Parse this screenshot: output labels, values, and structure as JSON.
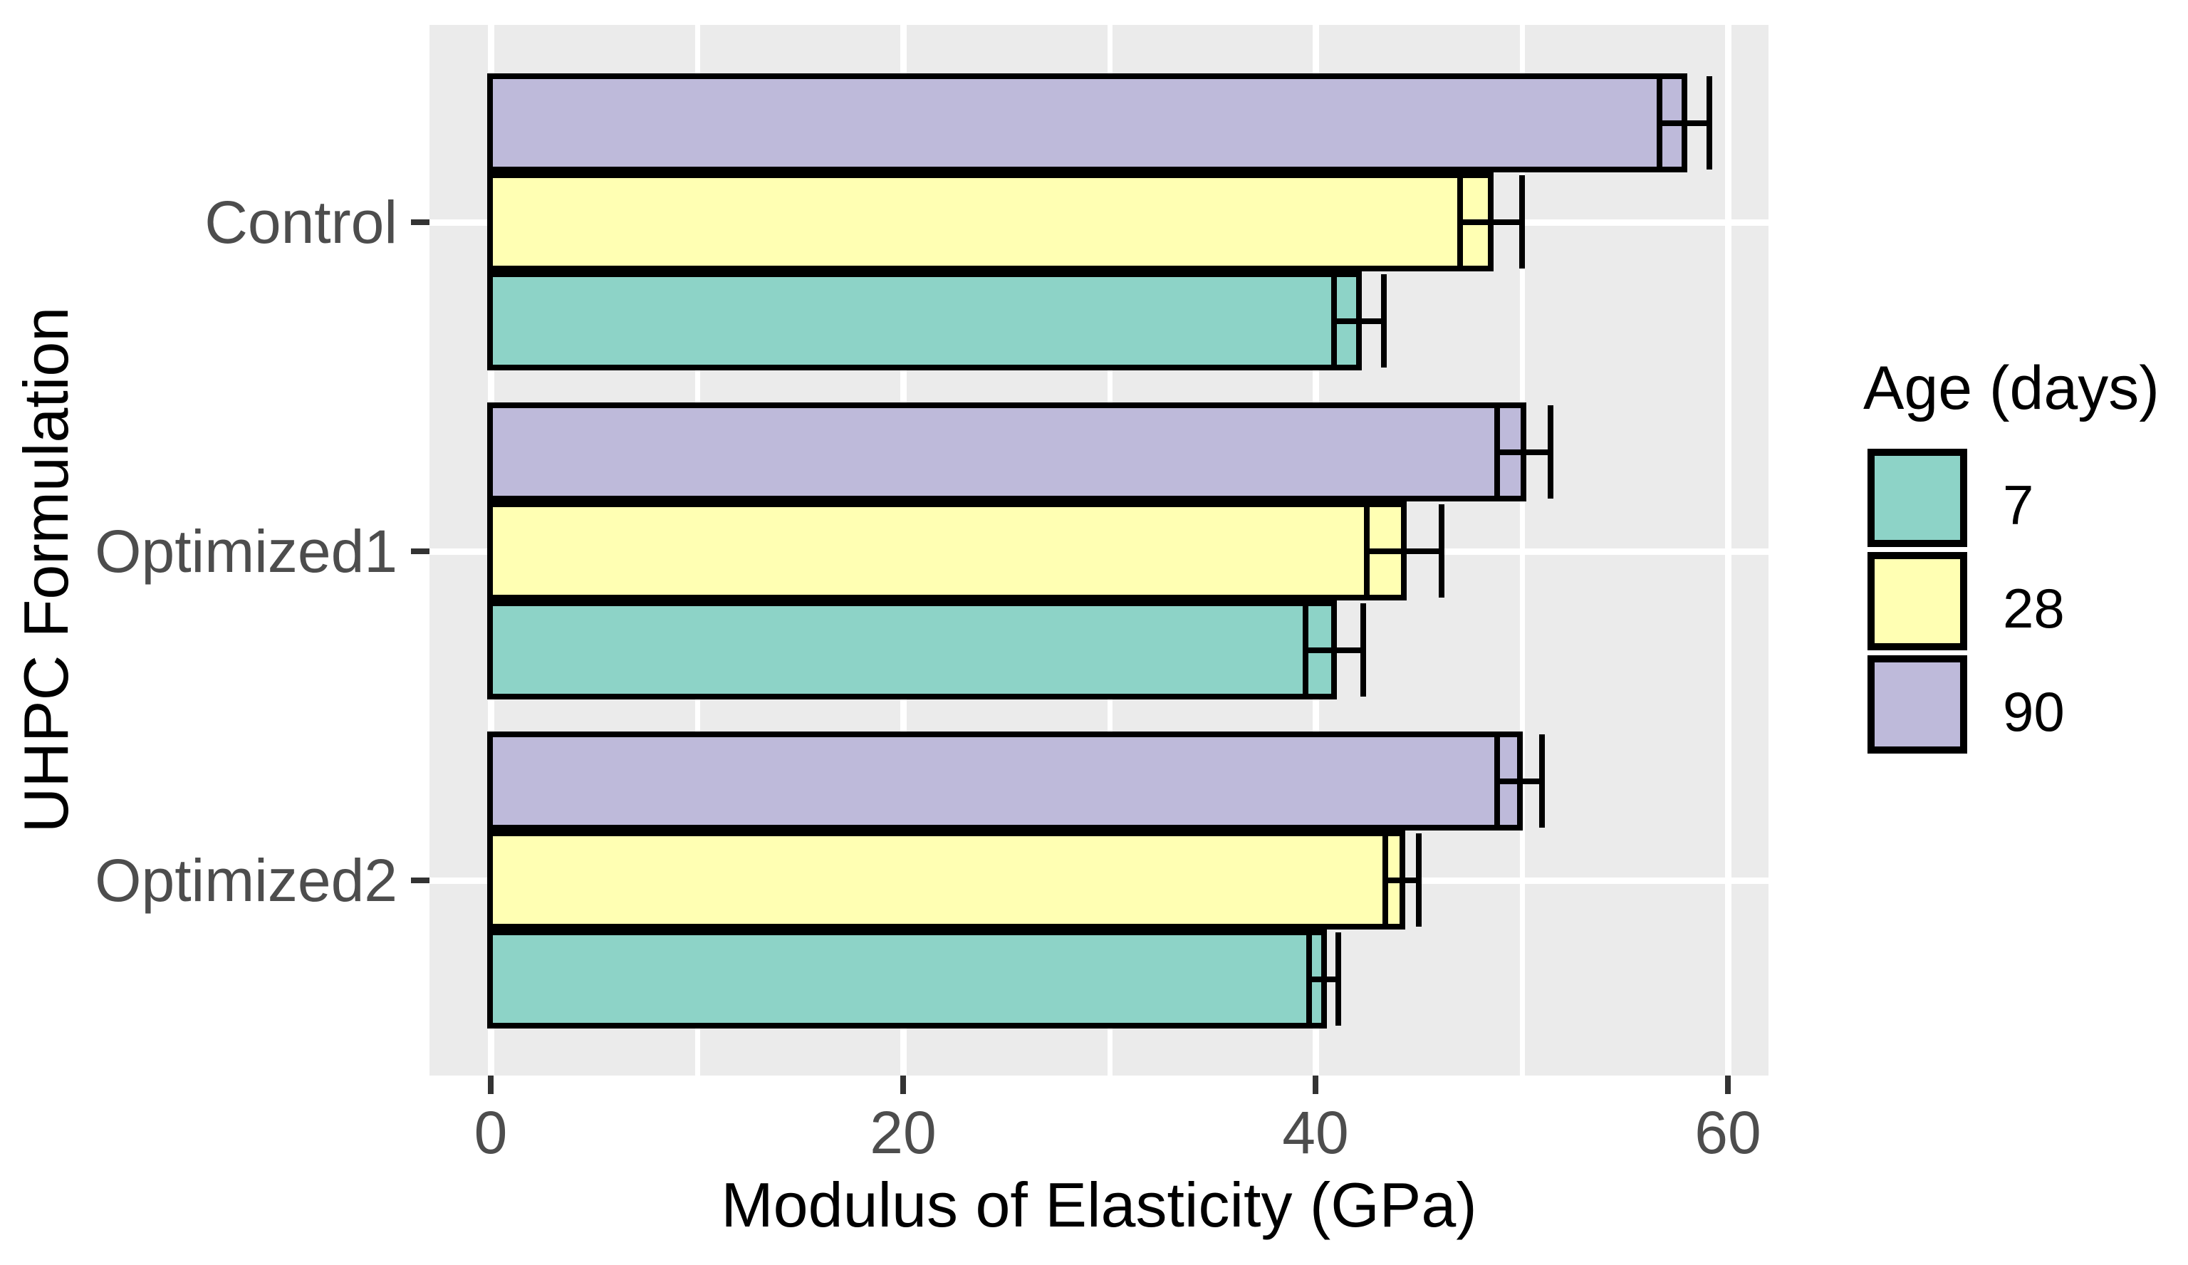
{
  "chart_data": {
    "type": "bar",
    "orientation": "horizontal",
    "title": "",
    "xlabel": "Modulus of Elasticity (GPa)",
    "ylabel": "UHPC Formulation",
    "categories": [
      "Control",
      "Optimized1",
      "Optimized2"
    ],
    "series": [
      {
        "name": "7",
        "color": "#8DD3C7",
        "values": [
          42.1,
          40.9,
          40.4
        ],
        "errors": [
          1.2,
          1.4,
          0.7
        ]
      },
      {
        "name": "28",
        "color": "#FFFFB3",
        "values": [
          48.5,
          44.3,
          44.2
        ],
        "errors": [
          1.5,
          1.8,
          0.8
        ]
      },
      {
        "name": "90",
        "color": "#BEBADA",
        "values": [
          57.9,
          50.1,
          49.9
        ],
        "errors": [
          1.2,
          1.3,
          1.1
        ]
      }
    ],
    "series_draw_order_top_to_bottom": [
      "90",
      "28",
      "7"
    ],
    "xlim": [
      0,
      60
    ],
    "x_ticks": [
      "0",
      "20",
      "40",
      "60"
    ],
    "x_tick_values": [
      0,
      20,
      40,
      60
    ],
    "x_minor_tick_values": [
      10,
      30,
      50
    ],
    "grid": true,
    "legend": {
      "title": "Age (days)",
      "position": "right",
      "entries": [
        "7",
        "28",
        "90"
      ]
    },
    "style": {
      "background": "#FFFFFF",
      "panel_bg": "#EBEBEB",
      "grid_color": "#FFFFFF",
      "bar_border_color": "#000000",
      "errorbar_color": "#000000",
      "tick_mark_color": "#333333",
      "tick_label_color": "#4D4D4D",
      "axis_title_color": "#000000",
      "legend_text_color": "#000000"
    }
  }
}
